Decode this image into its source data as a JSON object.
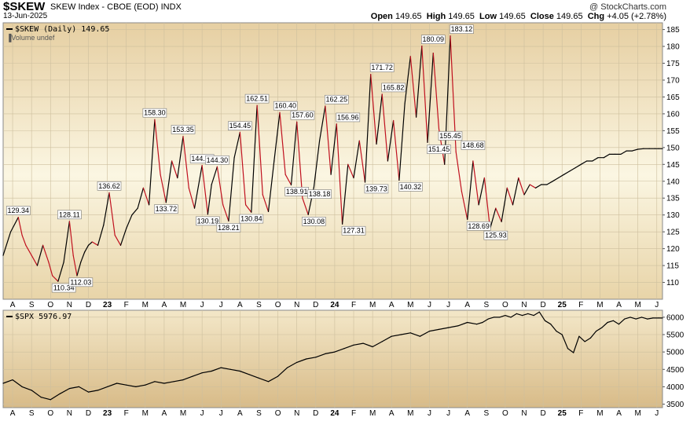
{
  "header": {
    "symbol": "$SKEW",
    "name": "SKEW Index - CBOE (EOD)  INDX",
    "date": "13-Jun-2025",
    "watermark": "@ StockCharts.com",
    "open_label": "Open",
    "open": "149.65",
    "high_label": "High",
    "high": "149.65",
    "low_label": "Low",
    "low": "149.65",
    "close_label": "Close",
    "close": "149.65",
    "chg_label": "Chg",
    "chg": "+4.05 (+2.78%)"
  },
  "colors": {
    "up": "#000000",
    "down": "#c0101e",
    "spx": "#000000"
  },
  "chart_data": [
    {
      "type": "line",
      "legend": "$SKEW (Daily) 149.65",
      "volume_note": "Volume undef",
      "ylim": [
        105,
        187
      ],
      "yticks": [
        110,
        115,
        120,
        125,
        130,
        135,
        140,
        145,
        150,
        155,
        160,
        165,
        170,
        175,
        180,
        185
      ],
      "x_range": [
        0,
        34.8
      ],
      "x_ticks": [
        {
          "label": "A",
          "x": 0.5
        },
        {
          "label": "S",
          "x": 1.5
        },
        {
          "label": "O",
          "x": 2.5
        },
        {
          "label": "N",
          "x": 3.5
        },
        {
          "label": "D",
          "x": 4.5
        },
        {
          "label": "23",
          "x": 5.5,
          "bold": true
        },
        {
          "label": "F",
          "x": 6.5
        },
        {
          "label": "M",
          "x": 7.5
        },
        {
          "label": "A",
          "x": 8.5
        },
        {
          "label": "M",
          "x": 9.5
        },
        {
          "label": "J",
          "x": 10.5
        },
        {
          "label": "J",
          "x": 11.5
        },
        {
          "label": "A",
          "x": 12.5
        },
        {
          "label": "S",
          "x": 13.5
        },
        {
          "label": "O",
          "x": 14.5
        },
        {
          "label": "N",
          "x": 15.5
        },
        {
          "label": "D",
          "x": 16.5
        },
        {
          "label": "24",
          "x": 17.5,
          "bold": true
        },
        {
          "label": "F",
          "x": 18.5
        },
        {
          "label": "M",
          "x": 19.5
        },
        {
          "label": "A",
          "x": 20.5
        },
        {
          "label": "M",
          "x": 21.5
        },
        {
          "label": "J",
          "x": 22.5
        },
        {
          "label": "J",
          "x": 23.5
        },
        {
          "label": "A",
          "x": 24.5
        },
        {
          "label": "S",
          "x": 25.5
        },
        {
          "label": "O",
          "x": 26.5
        },
        {
          "label": "N",
          "x": 27.5
        },
        {
          "label": "D",
          "x": 28.5
        },
        {
          "label": "25",
          "x": 29.5,
          "bold": true
        },
        {
          "label": "F",
          "x": 30.5
        },
        {
          "label": "M",
          "x": 31.5
        },
        {
          "label": "A",
          "x": 32.5
        },
        {
          "label": "M",
          "x": 33.5
        },
        {
          "label": "J",
          "x": 34.5
        }
      ],
      "series": [
        {
          "x": [
            0,
            0.4,
            0.8,
            1.0,
            1.2,
            1.5,
            1.8,
            2.1,
            2.4,
            2.6,
            2.9,
            3.2,
            3.5,
            3.7,
            3.9,
            4.1,
            4.3,
            4.5,
            4.7,
            5.0,
            5.3,
            5.6,
            5.9,
            6.2,
            6.5,
            6.8,
            7.1,
            7.4,
            7.7,
            8.0,
            8.3,
            8.6,
            8.9,
            9.2,
            9.5,
            9.8,
            10.1,
            10.5,
            10.8,
            11.0,
            11.3,
            11.6,
            11.9,
            12.2,
            12.5,
            12.8,
            13.1,
            13.4,
            13.7,
            14.0,
            14.3,
            14.6,
            14.9,
            15.2,
            15.5,
            15.8,
            16.1,
            16.4,
            16.7,
            17.0,
            17.3,
            17.6,
            17.9,
            18.2,
            18.5,
            18.8,
            19.1,
            19.4,
            19.7,
            20.0,
            20.3,
            20.6,
            20.9,
            21.2,
            21.5,
            21.8,
            22.1,
            22.4,
            22.7,
            23.0,
            23.3,
            23.6,
            23.9,
            24.2,
            24.5,
            24.8,
            25.1,
            25.4,
            25.7,
            26.0,
            26.3,
            26.6,
            26.9,
            27.2,
            27.5,
            27.8,
            28.1,
            28.4,
            28.7,
            29.0,
            29.3,
            29.6,
            29.9,
            30.2,
            30.5,
            30.8,
            31.1,
            31.4,
            31.7,
            32.0,
            32.3,
            32.6,
            32.9,
            33.2,
            33.5,
            33.8,
            34.1,
            34.4,
            34.6,
            34.8
          ],
          "values": [
            118,
            125,
            129.3,
            124,
            121,
            118,
            115,
            121,
            116,
            112,
            110.3,
            116,
            128.1,
            118,
            112,
            116,
            119,
            121,
            122,
            121,
            127,
            136.6,
            124,
            121,
            126,
            130,
            132,
            138,
            133,
            158.3,
            142,
            133.7,
            146,
            141,
            153.3,
            138,
            132,
            144.7,
            130.2,
            139,
            144.3,
            133,
            128.2,
            147,
            154.5,
            133,
            130.8,
            162.5,
            136,
            131,
            146,
            160.4,
            142,
            138.9,
            157.6,
            135,
            130.1,
            138.2,
            152,
            162.3,
            142,
            157,
            127.3,
            145,
            141,
            152,
            139.7,
            171.7,
            151,
            165.8,
            146,
            158,
            140.3,
            163,
            177,
            159,
            180.1,
            151.5,
            178,
            155.5,
            145,
            183.1,
            148.7,
            137,
            128.7,
            146,
            133,
            141,
            125.9,
            132,
            128,
            138,
            133,
            141,
            136,
            139,
            138,
            139,
            139,
            140,
            141,
            142,
            143,
            144,
            145,
            146,
            146,
            147,
            147,
            148,
            148,
            148,
            149,
            149,
            149.5,
            149.65,
            149.65,
            149.65,
            149.65,
            149.65
          ]
        }
      ],
      "labels": [
        {
          "text": "129.34",
          "x": 0.8,
          "value": 129.34,
          "pos": "above"
        },
        {
          "text": "110.34",
          "x": 3.2,
          "value": 110.34,
          "pos": "below"
        },
        {
          "text": "128.11",
          "x": 3.5,
          "value": 128.11,
          "pos": "above"
        },
        {
          "text": "112.03",
          "x": 4.1,
          "value": 112.03,
          "pos": "below"
        },
        {
          "text": "136.62",
          "x": 5.6,
          "value": 136.62,
          "pos": "above"
        },
        {
          "text": "158.30",
          "x": 8.0,
          "value": 158.3,
          "pos": "above"
        },
        {
          "text": "133.72",
          "x": 8.6,
          "value": 133.72,
          "pos": "below"
        },
        {
          "text": "153.35",
          "x": 9.5,
          "value": 153.35,
          "pos": "above"
        },
        {
          "text": "144.70",
          "x": 10.5,
          "value": 144.7,
          "pos": "above"
        },
        {
          "text": "130.19",
          "x": 10.8,
          "value": 130.19,
          "pos": "below"
        },
        {
          "text": "144.30",
          "x": 11.3,
          "value": 144.3,
          "pos": "above"
        },
        {
          "text": "128.21",
          "x": 11.9,
          "value": 128.21,
          "pos": "below"
        },
        {
          "text": "154.45",
          "x": 12.5,
          "value": 154.45,
          "pos": "above"
        },
        {
          "text": "130.84",
          "x": 13.1,
          "value": 130.84,
          "pos": "below"
        },
        {
          "text": "162.51",
          "x": 13.4,
          "value": 162.51,
          "pos": "above"
        },
        {
          "text": "160.40",
          "x": 14.9,
          "value": 160.4,
          "pos": "above"
        },
        {
          "text": "138.91",
          "x": 15.5,
          "value": 138.91,
          "pos": "below"
        },
        {
          "text": "157.60",
          "x": 15.8,
          "value": 157.6,
          "pos": "above"
        },
        {
          "text": "130.08",
          "x": 16.4,
          "value": 130.08,
          "pos": "below"
        },
        {
          "text": "138.18",
          "x": 16.7,
          "value": 138.18,
          "pos": "below"
        },
        {
          "text": "162.25",
          "x": 17.6,
          "value": 162.25,
          "pos": "above"
        },
        {
          "text": "156.96",
          "x": 18.2,
          "value": 156.96,
          "pos": "above"
        },
        {
          "text": "127.31",
          "x": 18.5,
          "value": 127.31,
          "pos": "below"
        },
        {
          "text": "139.73",
          "x": 19.7,
          "value": 139.73,
          "pos": "below"
        },
        {
          "text": "171.72",
          "x": 20.0,
          "value": 171.72,
          "pos": "above"
        },
        {
          "text": "165.82",
          "x": 20.6,
          "value": 165.82,
          "pos": "above"
        },
        {
          "text": "140.32",
          "x": 21.5,
          "value": 140.32,
          "pos": "below"
        },
        {
          "text": "180.09",
          "x": 22.7,
          "value": 180.09,
          "pos": "above"
        },
        {
          "text": "151.45",
          "x": 23.0,
          "value": 151.45,
          "pos": "below"
        },
        {
          "text": "155.45",
          "x": 23.6,
          "value": 155.45,
          "pos": "below"
        },
        {
          "text": "183.12",
          "x": 24.2,
          "value": 183.12,
          "pos": "above"
        },
        {
          "text": "148.68",
          "x": 24.8,
          "value": 148.68,
          "pos": "above"
        },
        {
          "text": "128.69",
          "x": 25.1,
          "value": 128.69,
          "pos": "below"
        },
        {
          "text": "125.93",
          "x": 26.0,
          "value": 125.93,
          "pos": "below"
        }
      ]
    },
    {
      "type": "line",
      "legend": "$SPX 5976.97",
      "ylim": [
        3400,
        6200
      ],
      "yticks": [
        3500,
        4000,
        4500,
        5000,
        5500,
        6000
      ],
      "x_range": [
        0,
        34.8
      ],
      "x_ticks": [
        {
          "label": "A",
          "x": 0.5
        },
        {
          "label": "S",
          "x": 1.5
        },
        {
          "label": "O",
          "x": 2.5
        },
        {
          "label": "N",
          "x": 3.5
        },
        {
          "label": "D",
          "x": 4.5
        },
        {
          "label": "23",
          "x": 5.5,
          "bold": true
        },
        {
          "label": "F",
          "x": 6.5
        },
        {
          "label": "M",
          "x": 7.5
        },
        {
          "label": "A",
          "x": 8.5
        },
        {
          "label": "M",
          "x": 9.5
        },
        {
          "label": "J",
          "x": 10.5
        },
        {
          "label": "J",
          "x": 11.5
        },
        {
          "label": "A",
          "x": 12.5
        },
        {
          "label": "S",
          "x": 13.5
        },
        {
          "label": "O",
          "x": 14.5
        },
        {
          "label": "N",
          "x": 15.5
        },
        {
          "label": "D",
          "x": 16.5
        },
        {
          "label": "24",
          "x": 17.5,
          "bold": true
        },
        {
          "label": "F",
          "x": 18.5
        },
        {
          "label": "M",
          "x": 19.5
        },
        {
          "label": "A",
          "x": 20.5
        },
        {
          "label": "M",
          "x": 21.5
        },
        {
          "label": "J",
          "x": 22.5
        },
        {
          "label": "J",
          "x": 23.5
        },
        {
          "label": "A",
          "x": 24.5
        },
        {
          "label": "S",
          "x": 25.5
        },
        {
          "label": "O",
          "x": 26.5
        },
        {
          "label": "N",
          "x": 27.5
        },
        {
          "label": "D",
          "x": 28.5
        },
        {
          "label": "25",
          "x": 29.5,
          "bold": true
        },
        {
          "label": "F",
          "x": 30.5
        },
        {
          "label": "M",
          "x": 31.5
        },
        {
          "label": "A",
          "x": 32.5
        },
        {
          "label": "M",
          "x": 33.5
        },
        {
          "label": "J",
          "x": 34.5
        }
      ],
      "series": [
        {
          "x": [
            0,
            0.5,
            1.0,
            1.5,
            2.0,
            2.5,
            3.0,
            3.5,
            4.0,
            4.5,
            5.0,
            5.5,
            6.0,
            6.5,
            7.0,
            7.5,
            8.0,
            8.5,
            9.0,
            9.5,
            10.0,
            10.5,
            11.0,
            11.5,
            12.0,
            12.5,
            13.0,
            13.5,
            14.0,
            14.5,
            15.0,
            15.5,
            16.0,
            16.5,
            17.0,
            17.5,
            18.0,
            18.5,
            19.0,
            19.5,
            20.0,
            20.5,
            21.0,
            21.5,
            22.0,
            22.5,
            23.0,
            23.5,
            24.0,
            24.5,
            25.0,
            25.3,
            25.6,
            25.9,
            26.2,
            26.5,
            26.8,
            27.1,
            27.4,
            27.7,
            28.0,
            28.3,
            28.6,
            28.9,
            29.2,
            29.5,
            29.8,
            30.1,
            30.4,
            30.7,
            31.0,
            31.3,
            31.6,
            31.9,
            32.2,
            32.5,
            32.8,
            33.1,
            33.4,
            33.7,
            34.0,
            34.3,
            34.6,
            34.8
          ],
          "values": [
            4100,
            4200,
            4000,
            3900,
            3700,
            3630,
            3800,
            3950,
            4000,
            3850,
            3900,
            4000,
            4100,
            4050,
            4000,
            4050,
            4150,
            4100,
            4150,
            4200,
            4300,
            4400,
            4450,
            4550,
            4500,
            4450,
            4350,
            4250,
            4150,
            4300,
            4550,
            4700,
            4800,
            4850,
            4950,
            5000,
            5100,
            5200,
            5250,
            5150,
            5300,
            5450,
            5500,
            5550,
            5450,
            5600,
            5650,
            5700,
            5750,
            5850,
            5800,
            5850,
            5950,
            6000,
            6000,
            6050,
            6000,
            6100,
            6050,
            6100,
            6050,
            6150,
            5900,
            5800,
            5600,
            5500,
            5100,
            4980,
            5450,
            5300,
            5400,
            5600,
            5700,
            5850,
            5900,
            5800,
            5950,
            6000,
            5950,
            6000,
            5950,
            5976.97,
            5976.97,
            5976.97
          ]
        }
      ]
    }
  ]
}
